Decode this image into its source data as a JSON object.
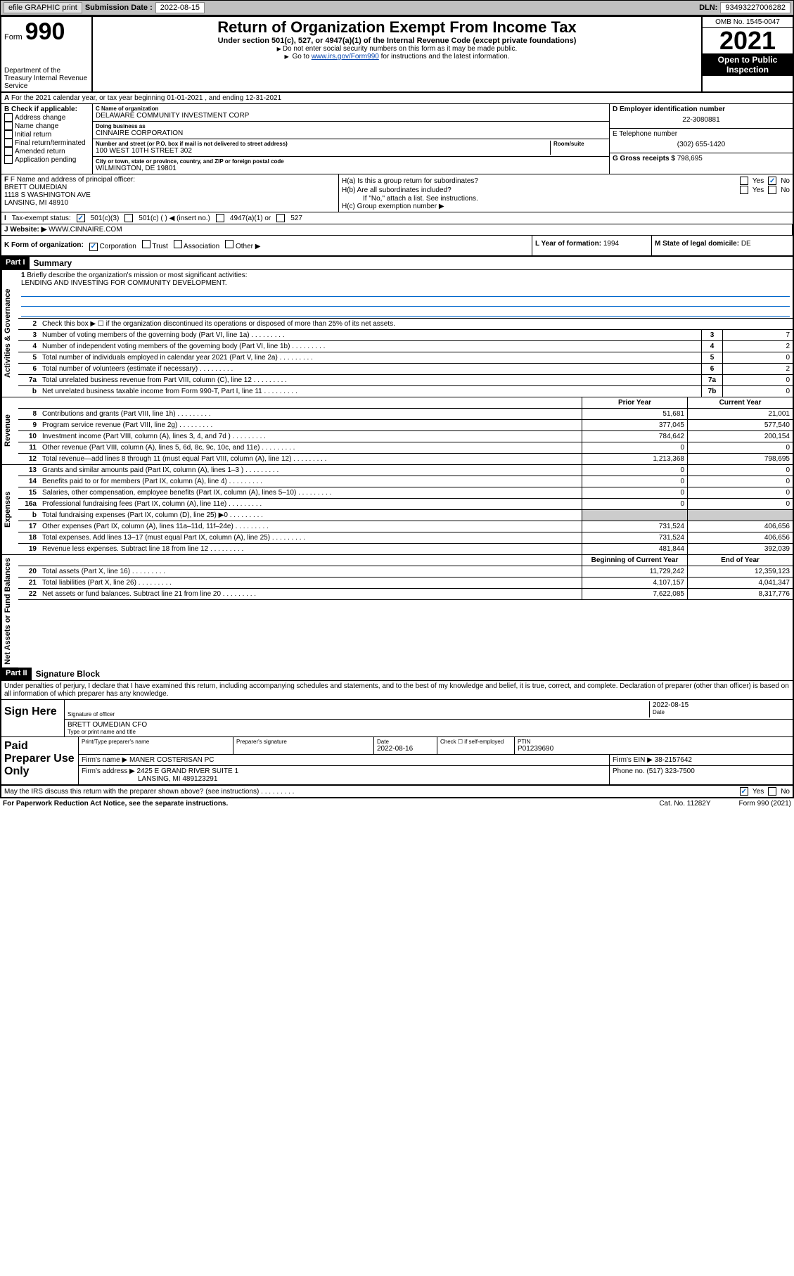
{
  "topbar": {
    "efile": "efile GRAPHIC print",
    "sub_label": "Submission Date :",
    "sub_date": "2022-08-15",
    "dln_label": "DLN:",
    "dln": "93493227006282"
  },
  "header": {
    "form_word": "Form",
    "form_num": "990",
    "dept": "Department of the Treasury\nInternal Revenue Service",
    "title": "Return of Organization Exempt From Income Tax",
    "sub": "Under section 501(c), 527, or 4947(a)(1) of the Internal Revenue Code (except private foundations)",
    "note1": "Do not enter social security numbers on this form as it may be made public.",
    "note2_pre": "Go to ",
    "note2_link": "www.irs.gov/Form990",
    "note2_post": " for instructions and the latest information.",
    "omb": "OMB No. 1545-0047",
    "year": "2021",
    "inspect": "Open to Public Inspection"
  },
  "row_a": {
    "text": "For the 2021 calendar year, or tax year beginning 01-01-2021   , and ending 12-31-2021"
  },
  "block_b": {
    "title": "B Check if applicable:",
    "opts": [
      "Address change",
      "Name change",
      "Initial return",
      "Final return/terminated",
      "Amended return",
      "Application pending"
    ]
  },
  "block_c": {
    "name_lbl": "C Name of organization",
    "name": "DELAWARE COMMUNITY INVESTMENT CORP",
    "dba_lbl": "Doing business as",
    "dba": "CINNAIRE CORPORATION",
    "addr_lbl": "Number and street (or P.O. box if mail is not delivered to street address)",
    "room_lbl": "Room/suite",
    "addr": "100 WEST 10TH STREET 302",
    "city_lbl": "City or town, state or province, country, and ZIP or foreign postal code",
    "city": "WILMINGTON, DE  19801"
  },
  "block_d": {
    "ein_lbl": "D Employer identification number",
    "ein": "22-3080881",
    "tel_lbl": "E Telephone number",
    "tel": "(302) 655-1420",
    "gross_lbl": "G Gross receipts $",
    "gross": "798,695"
  },
  "officer": {
    "lbl": "F Name and address of principal officer:",
    "name": "BRETT OUMEDIAN",
    "addr1": "1118 S WASHINGTON AVE",
    "addr2": "LANSING, MI  48910"
  },
  "hq": {
    "ha": "H(a)  Is this a group return for subordinates?",
    "hb": "H(b)  Are all subordinates included?",
    "hb_note": "If \"No,\" attach a list. See instructions.",
    "hc": "H(c)  Group exemption number ▶",
    "yes": "Yes",
    "no": "No"
  },
  "exempt": {
    "lbl": "Tax-exempt status:",
    "o1": "501(c)(3)",
    "o2": "501(c) (  ) ◀ (insert no.)",
    "o3": "4947(a)(1) or",
    "o4": "527"
  },
  "web": {
    "lbl": "Website: ▶",
    "val": "WWW.CINNAIRE.COM"
  },
  "kl": {
    "k_lbl": "K Form of organization:",
    "k_opts": [
      "Corporation",
      "Trust",
      "Association",
      "Other ▶"
    ],
    "l_lbl": "L Year of formation:",
    "l_val": "1994",
    "m_lbl": "M State of legal domicile:",
    "m_val": "DE"
  },
  "part1": {
    "hdr": "Part I",
    "title": "Summary"
  },
  "mission": {
    "q1": "Briefly describe the organization's mission or most significant activities:",
    "text": "LENDING AND INVESTING FOR COMMUNITY DEVELOPMENT."
  },
  "gov": {
    "q2": "Check this box ▶ ☐  if the organization discontinued its operations or disposed of more than 25% of its net assets.",
    "rows": [
      {
        "n": "3",
        "t": "Number of voting members of the governing body (Part VI, line 1a)",
        "b": "3",
        "v": "7"
      },
      {
        "n": "4",
        "t": "Number of independent voting members of the governing body (Part VI, line 1b)",
        "b": "4",
        "v": "2"
      },
      {
        "n": "5",
        "t": "Total number of individuals employed in calendar year 2021 (Part V, line 2a)",
        "b": "5",
        "v": "0"
      },
      {
        "n": "6",
        "t": "Total number of volunteers (estimate if necessary)",
        "b": "6",
        "v": "2"
      },
      {
        "n": "7a",
        "t": "Total unrelated business revenue from Part VIII, column (C), line 12",
        "b": "7a",
        "v": "0"
      },
      {
        "n": "b",
        "t": "Net unrelated business taxable income from Form 990-T, Part I, line 11",
        "b": "7b",
        "v": "0"
      }
    ]
  },
  "vtabs": {
    "gov": "Activities & Governance",
    "rev": "Revenue",
    "exp": "Expenses",
    "net": "Net Assets or Fund Balances"
  },
  "fin_hdr": {
    "c1": "Prior Year",
    "c2": "Current Year"
  },
  "rev": [
    {
      "n": "8",
      "t": "Contributions and grants (Part VIII, line 1h)",
      "c1": "51,681",
      "c2": "21,001"
    },
    {
      "n": "9",
      "t": "Program service revenue (Part VIII, line 2g)",
      "c1": "377,045",
      "c2": "577,540"
    },
    {
      "n": "10",
      "t": "Investment income (Part VIII, column (A), lines 3, 4, and 7d )",
      "c1": "784,642",
      "c2": "200,154"
    },
    {
      "n": "11",
      "t": "Other revenue (Part VIII, column (A), lines 5, 6d, 8c, 9c, 10c, and 11e)",
      "c1": "0",
      "c2": "0"
    },
    {
      "n": "12",
      "t": "Total revenue—add lines 8 through 11 (must equal Part VIII, column (A), line 12)",
      "c1": "1,213,368",
      "c2": "798,695"
    }
  ],
  "exp": [
    {
      "n": "13",
      "t": "Grants and similar amounts paid (Part IX, column (A), lines 1–3 )",
      "c1": "0",
      "c2": "0"
    },
    {
      "n": "14",
      "t": "Benefits paid to or for members (Part IX, column (A), line 4)",
      "c1": "0",
      "c2": "0"
    },
    {
      "n": "15",
      "t": "Salaries, other compensation, employee benefits (Part IX, column (A), lines 5–10)",
      "c1": "0",
      "c2": "0"
    },
    {
      "n": "16a",
      "t": "Professional fundraising fees (Part IX, column (A), line 11e)",
      "c1": "0",
      "c2": "0"
    },
    {
      "n": "b",
      "t": "Total fundraising expenses (Part IX, column (D), line 25) ▶0",
      "c1": "",
      "c2": "",
      "shade": true
    },
    {
      "n": "17",
      "t": "Other expenses (Part IX, column (A), lines 11a–11d, 11f–24e)",
      "c1": "731,524",
      "c2": "406,656"
    },
    {
      "n": "18",
      "t": "Total expenses. Add lines 13–17 (must equal Part IX, column (A), line 25)",
      "c1": "731,524",
      "c2": "406,656"
    },
    {
      "n": "19",
      "t": "Revenue less expenses. Subtract line 18 from line 12",
      "c1": "481,844",
      "c2": "392,039"
    }
  ],
  "net_hdr": {
    "c1": "Beginning of Current Year",
    "c2": "End of Year"
  },
  "net": [
    {
      "n": "20",
      "t": "Total assets (Part X, line 16)",
      "c1": "11,729,242",
      "c2": "12,359,123"
    },
    {
      "n": "21",
      "t": "Total liabilities (Part X, line 26)",
      "c1": "4,107,157",
      "c2": "4,041,347"
    },
    {
      "n": "22",
      "t": "Net assets or fund balances. Subtract line 21 from line 20",
      "c1": "7,622,085",
      "c2": "8,317,776"
    }
  ],
  "part2": {
    "hdr": "Part II",
    "title": "Signature Block"
  },
  "sig": {
    "decl": "Under penalties of perjury, I declare that I have examined this return, including accompanying schedules and statements, and to the best of my knowledge and belief, it is true, correct, and complete. Declaration of preparer (other than officer) is based on all information of which preparer has any knowledge.",
    "here": "Sign Here",
    "sig_lbl": "Signature of officer",
    "date_lbl": "Date",
    "date": "2022-08-15",
    "name": "BRETT OUMEDIAN CFO",
    "name_lbl": "Type or print name and title"
  },
  "paid": {
    "lbl": "Paid Preparer Use Only",
    "h1": "Print/Type preparer's name",
    "h2": "Preparer's signature",
    "h3": "Date",
    "h3v": "2022-08-16",
    "h4": "Check ☐ if self-employed",
    "h5": "PTIN",
    "h5v": "P01239690",
    "firm_lbl": "Firm's name   ▶",
    "firm": "MANER COSTERISAN PC",
    "ein_lbl": "Firm's EIN ▶",
    "ein": "38-2157642",
    "addr_lbl": "Firm's address ▶",
    "addr": "2425 E GRAND RIVER SUITE 1",
    "addr2": "LANSING, MI  489123291",
    "ph_lbl": "Phone no.",
    "ph": "(517) 323-7500"
  },
  "may": {
    "q": "May the IRS discuss this return with the preparer shown above? (see instructions)",
    "yes": "Yes",
    "no": "No"
  },
  "footer": {
    "pra": "For Paperwork Reduction Act Notice, see the separate instructions.",
    "cat": "Cat. No. 11282Y",
    "form": "Form 990 (2021)"
  }
}
